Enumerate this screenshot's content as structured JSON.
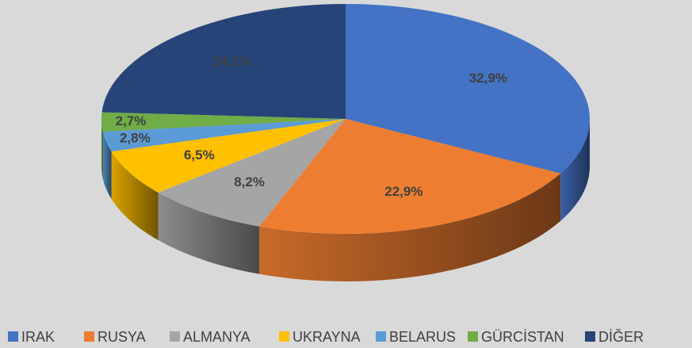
{
  "chart_data": {
    "type": "pie3d",
    "categories": [
      "IRAK",
      "RUSYA",
      "ALMANYA",
      "UKRAYNA",
      "BELARUS",
      "GÜRCİSTAN",
      "DİĞER"
    ],
    "values": [
      32.9,
      22.9,
      8.2,
      6.5,
      2.8,
      2.7,
      24.1
    ],
    "value_labels": [
      "32,9%",
      "22,9%",
      "8,2%",
      "6,5%",
      "2,8%",
      "2,7%",
      "24,1%"
    ],
    "colors": [
      "#4472c4",
      "#ed7d31",
      "#a5a5a5",
      "#ffc000",
      "#5b9bd5",
      "#70ad47",
      "#264478"
    ],
    "legend": "bottom"
  }
}
